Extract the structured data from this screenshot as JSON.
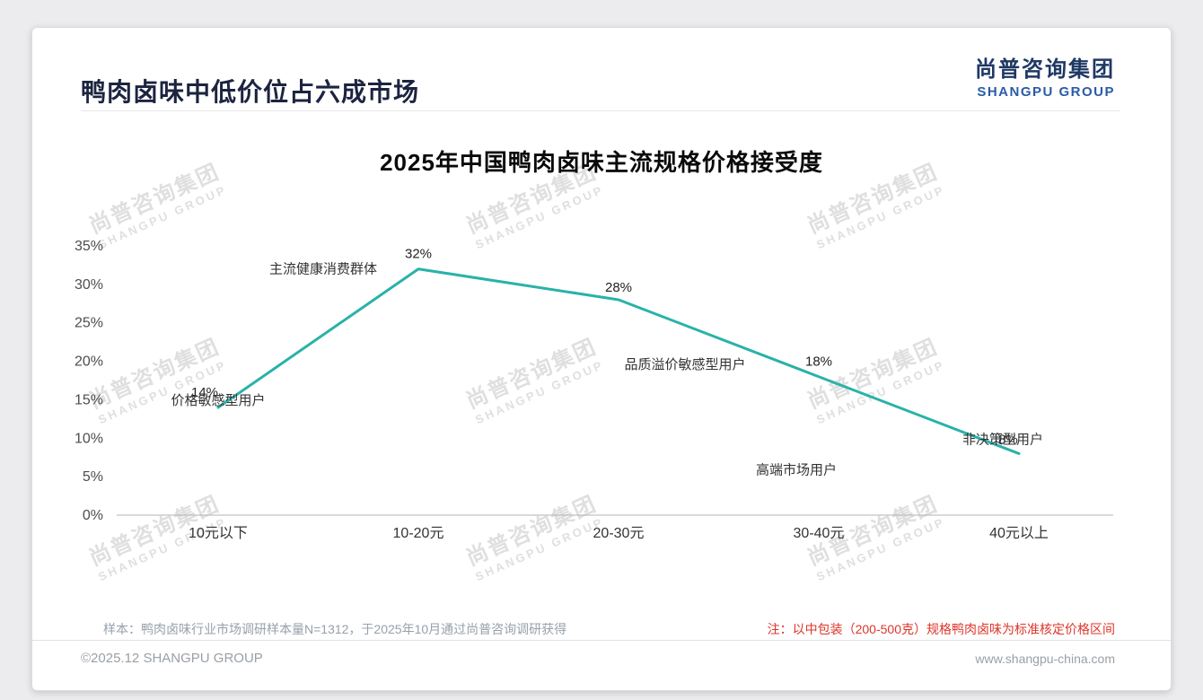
{
  "page": {
    "title": "鸭肉卤味中低价位占六成市场",
    "logo": {
      "cn": "尚普咨询集团",
      "en": "SHANGPU GROUP"
    },
    "watermark": {
      "cn": "尚普咨询集团",
      "en": "SHANGPU GROUP"
    },
    "note_left": "样本：鸭肉卤味行业市场调研样本量N=1312，于2025年10月通过尚普咨询调研获得",
    "note_right": "注：以中包装（200-500克）规格鸭肉卤味为标准核定价格区间",
    "copyright": "©2025.12 SHANGPU GROUP",
    "website": "www.shangpu-china.com"
  },
  "chart_data": {
    "type": "line",
    "title": "2025年中国鸭肉卤味主流规格价格接受度",
    "categories": [
      "10元以下",
      "10-20元",
      "20-30元",
      "30-40元",
      "40元以上"
    ],
    "values": [
      14,
      32,
      28,
      18,
      8
    ],
    "value_labels": [
      "14%",
      "32%",
      "28%",
      "18%",
      "8%"
    ],
    "annotations": [
      "价格敏感型用户",
      "主流健康消费群体",
      "品质溢价敏感型用户",
      "高端市场用户",
      "非决策型用户"
    ],
    "y_ticks": [
      "0%",
      "5%",
      "10%",
      "15%",
      "20%",
      "25%",
      "30%",
      "35%"
    ],
    "ylim": [
      0,
      35
    ],
    "xlabel": "",
    "ylabel": "",
    "grid": false,
    "legend": "none",
    "line_color": "#29b2a9",
    "axis_color": "#b3b3b3"
  }
}
